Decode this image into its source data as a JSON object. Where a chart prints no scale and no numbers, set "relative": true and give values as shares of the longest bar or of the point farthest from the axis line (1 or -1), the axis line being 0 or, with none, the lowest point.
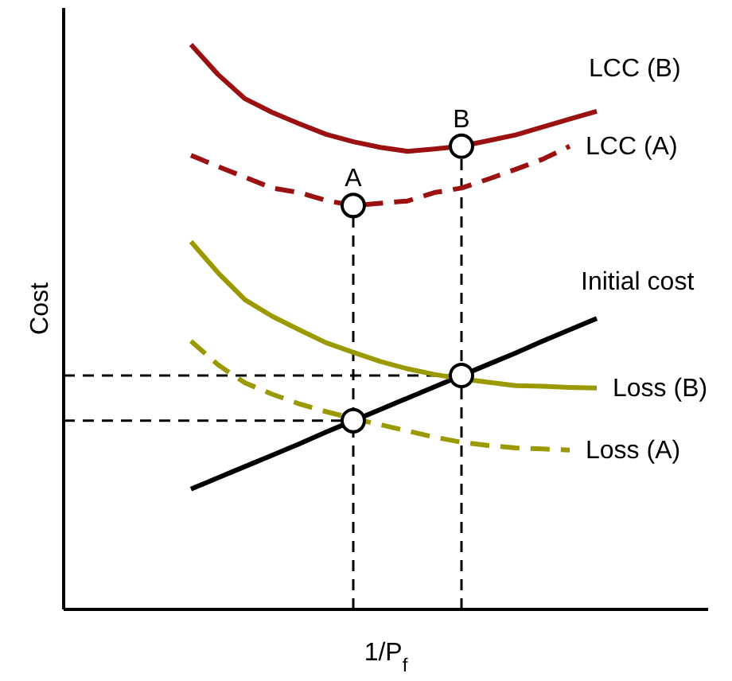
{
  "chart_data": {
    "type": "line",
    "relative": true,
    "xlabel": "1/P$_{f}$",
    "ylabel": "Cost",
    "legend": false,
    "categories": [
      null,
      null,
      null,
      null,
      null,
      null,
      null,
      null,
      null,
      null,
      null,
      null,
      null,
      null,
      null,
      null
    ],
    "series": [
      {
        "name": "LCC (B)",
        "color": "#9b1010",
        "line_style": "solid",
        "values": [
          1,
          0.947,
          0.904,
          0.88,
          0.86,
          0.841,
          0.828,
          0.818,
          0.811,
          0.815,
          0.82,
          0.83,
          0.84,
          0.854,
          0.868,
          0.882
        ]
      },
      {
        "name": "LCC (A)",
        "color": "#9b1010",
        "line_style": "dashed",
        "values": [
          0.804,
          0.784,
          0.765,
          0.746,
          0.738,
          0.724,
          0.715,
          0.719,
          0.723,
          0.738,
          0.746,
          0.762,
          0.779,
          0.797,
          0.82,
          null
        ]
      },
      {
        "name": "Initial cost",
        "color": "#000000",
        "line_style": "solid",
        "values": [
          0.213,
          0.233,
          0.253,
          0.273,
          0.293,
          0.314,
          0.334,
          0.354,
          0.374,
          0.394,
          0.414,
          0.434,
          0.454,
          0.475,
          0.495,
          0.515
        ]
      },
      {
        "name": "Loss (B)",
        "color": "#9a9a00",
        "line_style": "solid",
        "values": [
          0.651,
          0.596,
          0.548,
          0.519,
          0.495,
          0.472,
          0.455,
          0.439,
          0.426,
          0.416,
          0.408,
          0.402,
          0.396,
          0.395,
          0.393,
          0.392
        ]
      },
      {
        "name": "Loss (A)",
        "color": "#9a9a00",
        "line_style": "dashed",
        "values": [
          0.475,
          0.433,
          0.401,
          0.381,
          0.364,
          0.35,
          0.338,
          0.327,
          0.316,
          0.305,
          0.296,
          0.29,
          0.286,
          0.284,
          0.282,
          null
        ]
      }
    ],
    "ref_lines": [
      {
        "axis": "y",
        "value": 0.414,
        "line_style": "dashed",
        "color": "#000000"
      },
      {
        "axis": "y",
        "value": 0.334,
        "line_style": "dashed",
        "color": "#000000"
      }
    ],
    "annotations": [
      "A",
      "B"
    ]
  }
}
